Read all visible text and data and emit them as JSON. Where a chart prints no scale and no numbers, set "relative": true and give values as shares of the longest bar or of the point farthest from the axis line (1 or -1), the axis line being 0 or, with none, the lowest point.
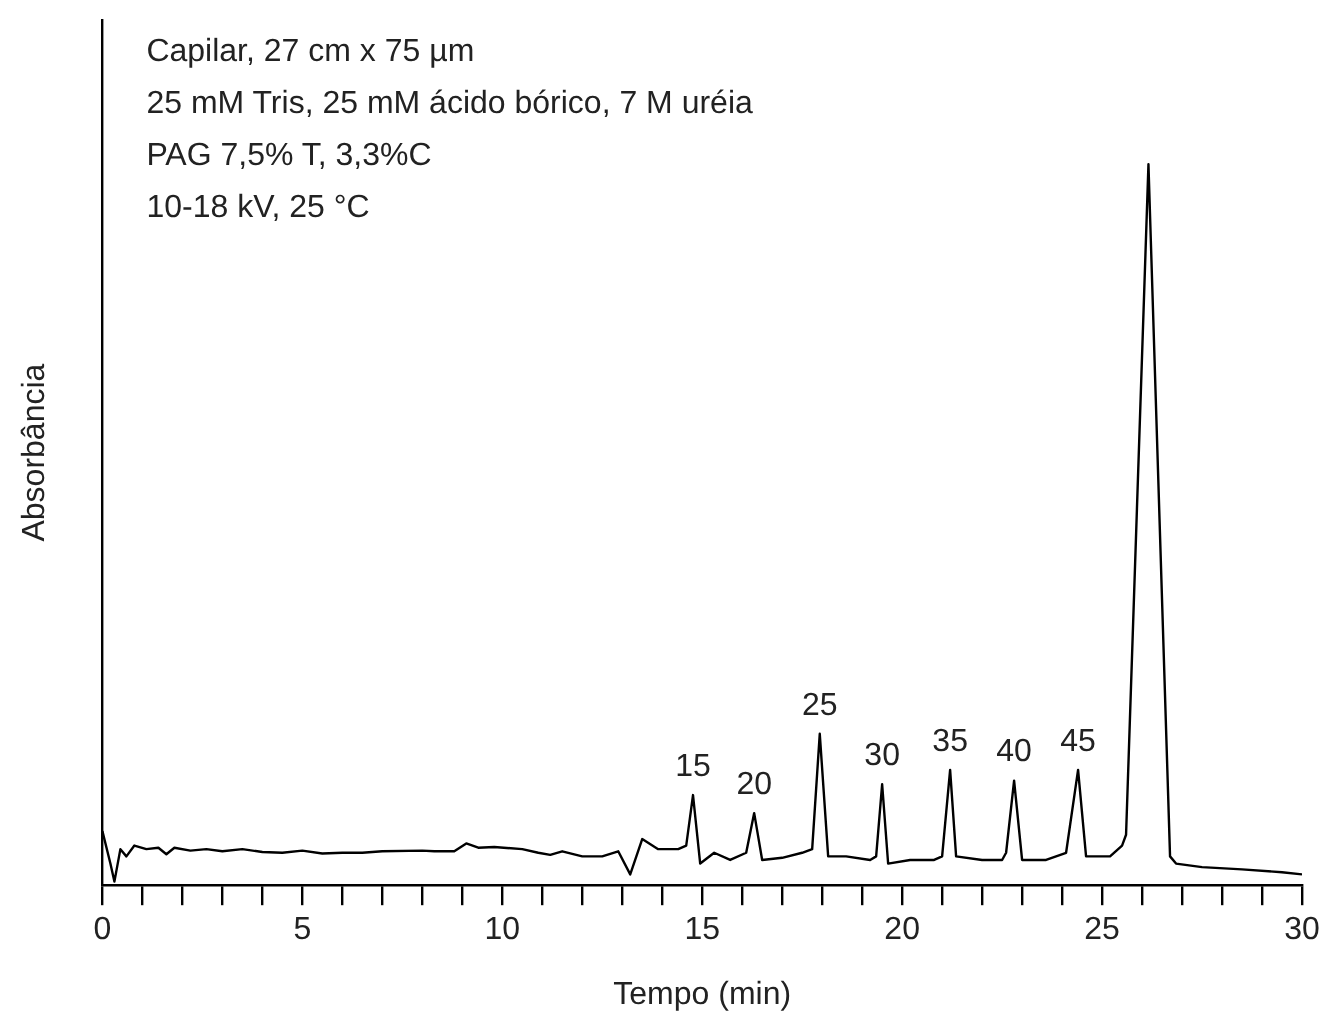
{
  "chart_data": {
    "type": "line",
    "xlabel": "Tempo (min)",
    "ylabel": "Absorbância",
    "relative": true,
    "marker": "none",
    "line_style": "solid",
    "annotations": [
      "Capilar, 27 cm x 75 µm",
      "25 mM Tris, 25 mM ácido bórico, 7 M uréia",
      "PAG 7,5% T, 3,3%C",
      "10-18 kV, 25 °C",
      {
        "text": "15",
        "x": 14.77,
        "y": 0.125
      },
      {
        "text": "20",
        "x": 16.3,
        "y": 0.1
      },
      {
        "text": "25",
        "x": 17.94,
        "y": 0.21
      },
      {
        "text": "30",
        "x": 19.5,
        "y": 0.14
      },
      {
        "text": "35",
        "x": 21.2,
        "y": 0.16
      },
      {
        "text": "40",
        "x": 22.8,
        "y": 0.145
      },
      {
        "text": "45",
        "x": 24.4,
        "y": 0.16
      }
    ],
    "xlim": [
      0,
      30
    ],
    "xticks": [
      0,
      {
        "value": 1,
        "label": null
      },
      {
        "value": 2,
        "label": null
      },
      {
        "value": 3,
        "label": null
      },
      {
        "value": 4,
        "label": null
      },
      5,
      {
        "value": 6,
        "label": null
      },
      {
        "value": 7,
        "label": null
      },
      {
        "value": 8,
        "label": null
      },
      {
        "value": 9,
        "label": null
      },
      10,
      {
        "value": 11,
        "label": null
      },
      {
        "value": 12,
        "label": null
      },
      {
        "value": 13,
        "label": null
      },
      {
        "value": 14,
        "label": null
      },
      15,
      {
        "value": 16,
        "label": null
      },
      {
        "value": 17,
        "label": null
      },
      {
        "value": 18,
        "label": null
      },
      {
        "value": 19,
        "label": null
      },
      20,
      {
        "value": 21,
        "label": null
      },
      {
        "value": 22,
        "label": null
      },
      {
        "value": 23,
        "label": null
      },
      {
        "value": 24,
        "label": null
      },
      25,
      {
        "value": 26,
        "label": null
      },
      {
        "value": 27,
        "label": null
      },
      {
        "value": 28,
        "label": null
      },
      {
        "value": 29,
        "label": null
      },
      30
    ],
    "x": [
      0,
      0.2,
      0.3,
      0.45,
      0.6,
      0.8,
      1.1,
      1.4,
      1.6,
      1.8,
      2.2,
      2.6,
      3,
      3.5,
      4,
      4.5,
      5,
      5.5,
      6,
      6.5,
      7,
      8,
      8.3,
      8.8,
      9.1,
      9.4,
      9.8,
      10.5,
      10.9,
      11.2,
      11.5,
      12,
      12.5,
      12.9,
      13.2,
      13.5,
      13.9,
      14.4,
      14.6,
      14.77,
      14.95,
      15.3,
      15.7,
      16.1,
      16.3,
      16.5,
      17,
      17.5,
      17.75,
      17.94,
      18.15,
      18.6,
      19.2,
      19.35,
      19.5,
      19.65,
      20.2,
      20.8,
      21.0,
      21.2,
      21.35,
      22,
      22.5,
      22.6,
      22.8,
      23,
      23.6,
      24.1,
      24.4,
      24.6,
      25.2,
      25.5,
      25.6,
      26.16,
      26.7,
      26.85,
      27.5,
      28.5,
      29.5,
      30
    ],
    "series": [
      {
        "color": "#000000",
        "values": [
          0.075,
          0.03,
          0.005,
          0.05,
          0.04,
          0.055,
          0.05,
          0.052,
          0.043,
          0.052,
          0.048,
          0.05,
          0.047,
          0.05,
          0.046,
          0.045,
          0.048,
          0.044,
          0.045,
          0.045,
          0.047,
          0.048,
          0.047,
          0.047,
          0.058,
          0.052,
          0.053,
          0.05,
          0.045,
          0.042,
          0.047,
          0.04,
          0.04,
          0.047,
          0.015,
          0.064,
          0.05,
          0.05,
          0.055,
          0.125,
          0.03,
          0.045,
          0.035,
          0.045,
          0.1,
          0.035,
          0.038,
          0.045,
          0.05,
          0.21,
          0.04,
          0.04,
          0.035,
          0.04,
          0.14,
          0.03,
          0.035,
          0.035,
          0.04,
          0.16,
          0.04,
          0.035,
          0.035,
          0.045,
          0.145,
          0.035,
          0.035,
          0.045,
          0.16,
          0.04,
          0.04,
          0.055,
          0.07,
          1,
          0.04,
          0.03,
          0.025,
          0.022,
          0.018,
          0.015
        ]
      }
    ]
  }
}
